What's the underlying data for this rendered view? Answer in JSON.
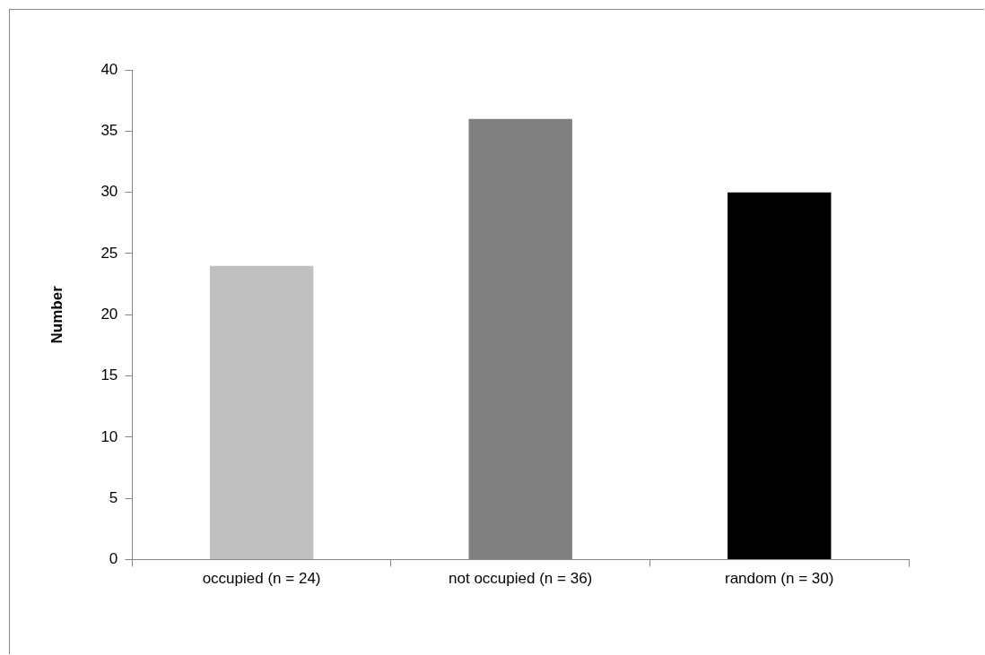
{
  "chart_data": {
    "type": "bar",
    "ylabel": "Number",
    "categories": [
      "occupied (n = 24)",
      "not occupied (n = 36)",
      "random (n = 30)"
    ],
    "values": [
      24,
      36,
      30
    ],
    "colors": [
      "#c0c0c0",
      "#808080",
      "#000000"
    ],
    "ylim": [
      0,
      40
    ],
    "yticks": [
      0,
      5,
      10,
      15,
      20,
      25,
      30,
      35,
      40
    ]
  }
}
